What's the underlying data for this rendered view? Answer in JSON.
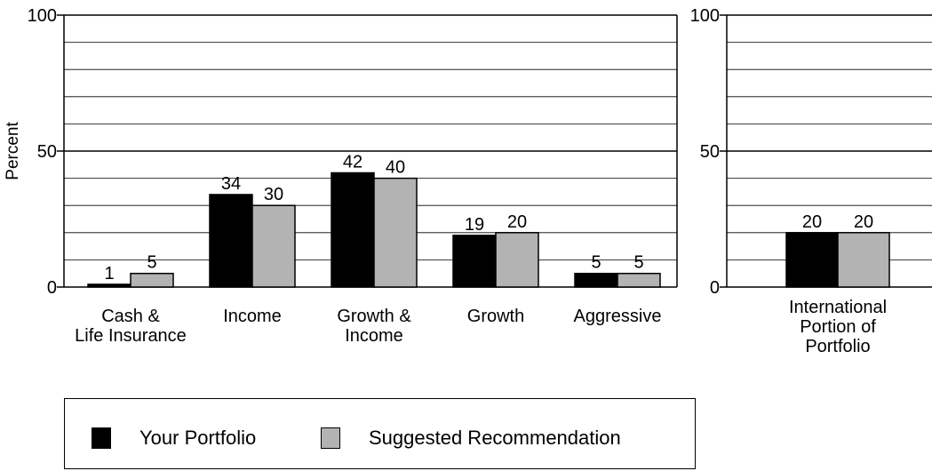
{
  "chart_data": [
    {
      "type": "bar",
      "ylabel": "Percent",
      "ylim": [
        0,
        100
      ],
      "yticks": [
        "0",
        "50",
        "100"
      ],
      "grid": true,
      "categories": [
        [
          "Cash &",
          "Life Insurance"
        ],
        [
          "Income"
        ],
        [
          "Growth &",
          "Income"
        ],
        [
          "Growth"
        ],
        [
          "Aggressive"
        ]
      ],
      "series": [
        {
          "name": "Your Portfolio",
          "values": [
            1,
            34,
            42,
            19,
            5
          ],
          "color": "#000000"
        },
        {
          "name": "Suggested Recommendation",
          "values": [
            5,
            30,
            40,
            20,
            5
          ],
          "color": "#b3b3b3"
        }
      ]
    },
    {
      "type": "bar",
      "ylim": [
        0,
        100
      ],
      "yticks": [
        "0",
        "50",
        "100"
      ],
      "grid": true,
      "categories": [
        [
          "International",
          "Portion of",
          "Portfolio"
        ]
      ],
      "series": [
        {
          "name": "Your Portfolio",
          "values": [
            20
          ],
          "color": "#000000"
        },
        {
          "name": "Suggested Recommendation",
          "values": [
            20
          ],
          "color": "#b3b3b3"
        }
      ]
    }
  ],
  "legend": {
    "items": [
      {
        "label": "Your Portfolio",
        "color": "#000000"
      },
      {
        "label": "Suggested Recommendation",
        "color": "#b3b3b3"
      }
    ]
  }
}
